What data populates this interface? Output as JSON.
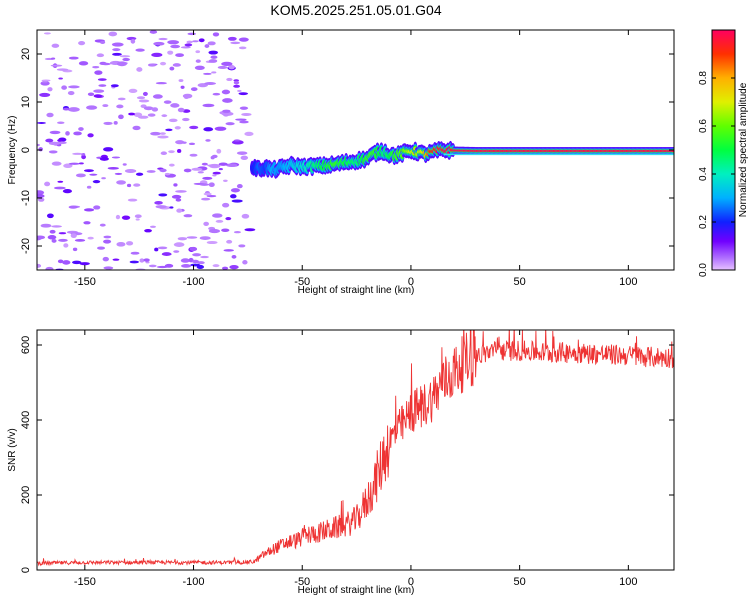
{
  "title": "KOM5.2025.251.05.01.G04",
  "chart_data": [
    {
      "type": "heatmap",
      "name": "spectrogram",
      "xlabel": "Height of straight line (km)",
      "ylabel": "Frequency (Hz)",
      "xlim": [
        -172,
        121
      ],
      "ylim": [
        -25,
        25
      ],
      "xticks": [
        -150,
        -100,
        -50,
        0,
        50,
        100
      ],
      "yticks": [
        -20,
        -10,
        0,
        10,
        20
      ],
      "noise_region_x": [
        -172,
        -74
      ],
      "signal_trace": {
        "x": [
          -73,
          -70,
          -67,
          -64,
          -60,
          -55,
          -50,
          -45,
          -40,
          -35,
          -30,
          -25,
          -20,
          -17,
          -14,
          -12,
          -10,
          -7,
          -3,
          0,
          3,
          6,
          9,
          12,
          15,
          20,
          30,
          40,
          50,
          60,
          70,
          80,
          90,
          100,
          110,
          121
        ],
        "freq_hz": [
          -3.5,
          -4.0,
          -3.6,
          -4.2,
          -3.8,
          -3.2,
          -3.5,
          -3.4,
          -3.3,
          -3.0,
          -2.6,
          -2.2,
          -1.8,
          -0.8,
          -0.2,
          -0.3,
          -0.9,
          -1.2,
          -0.6,
          -0.1,
          -0.4,
          -0.9,
          -0.6,
          -0.2,
          0.0,
          -0.1,
          -0.2,
          -0.2,
          -0.2,
          -0.2,
          -0.2,
          -0.2,
          -0.2,
          -0.2,
          -0.2,
          -0.2
        ],
        "amplitude": [
          0.18,
          0.25,
          0.22,
          0.3,
          0.28,
          0.33,
          0.38,
          0.45,
          0.5,
          0.55,
          0.5,
          0.45,
          0.55,
          0.55,
          0.5,
          0.45,
          0.5,
          0.55,
          0.6,
          0.7,
          0.65,
          0.75,
          0.9,
          0.95,
          0.98,
          0.98,
          0.98,
          0.98,
          0.98,
          0.98,
          0.98,
          0.98,
          0.98,
          0.98,
          0.98,
          0.98
        ]
      },
      "colorbar": {
        "label": "Normalized spectral amplitude",
        "range": [
          0,
          1
        ],
        "ticks": [
          "0.0",
          "0.2",
          "0.4",
          "0.6",
          "0.8"
        ]
      }
    },
    {
      "type": "line",
      "name": "snr",
      "xlabel": "Height of straight line (km)",
      "ylabel": "SNR (v/v)",
      "xlim": [
        -172,
        121
      ],
      "ylim": [
        0,
        640
      ],
      "xticks": [
        -150,
        -100,
        -50,
        0,
        50,
        100
      ],
      "yticks": [
        0,
        200,
        400,
        600
      ],
      "color": "#ee3333",
      "series": [
        {
          "name": "SNR",
          "x": [
            -172,
            -150,
            -120,
            -100,
            -80,
            -72,
            -68,
            -62,
            -56,
            -52,
            -49,
            -46,
            -42,
            -36,
            -30,
            -25,
            -21,
            -17,
            -14,
            -11,
            -8,
            -5,
            -2,
            0,
            3,
            6,
            10,
            15,
            20,
            25,
            30,
            35,
            40,
            45,
            50,
            60,
            70,
            80,
            90,
            100,
            110,
            121
          ],
          "y": [
            18,
            20,
            20,
            20,
            20,
            22,
            40,
            60,
            75,
            80,
            90,
            95,
            100,
            110,
            120,
            135,
            175,
            225,
            275,
            330,
            360,
            380,
            400,
            420,
            430,
            440,
            460,
            500,
            530,
            555,
            570,
            580,
            585,
            585,
            585,
            580,
            580,
            578,
            575,
            572,
            568,
            566
          ]
        }
      ]
    }
  ]
}
